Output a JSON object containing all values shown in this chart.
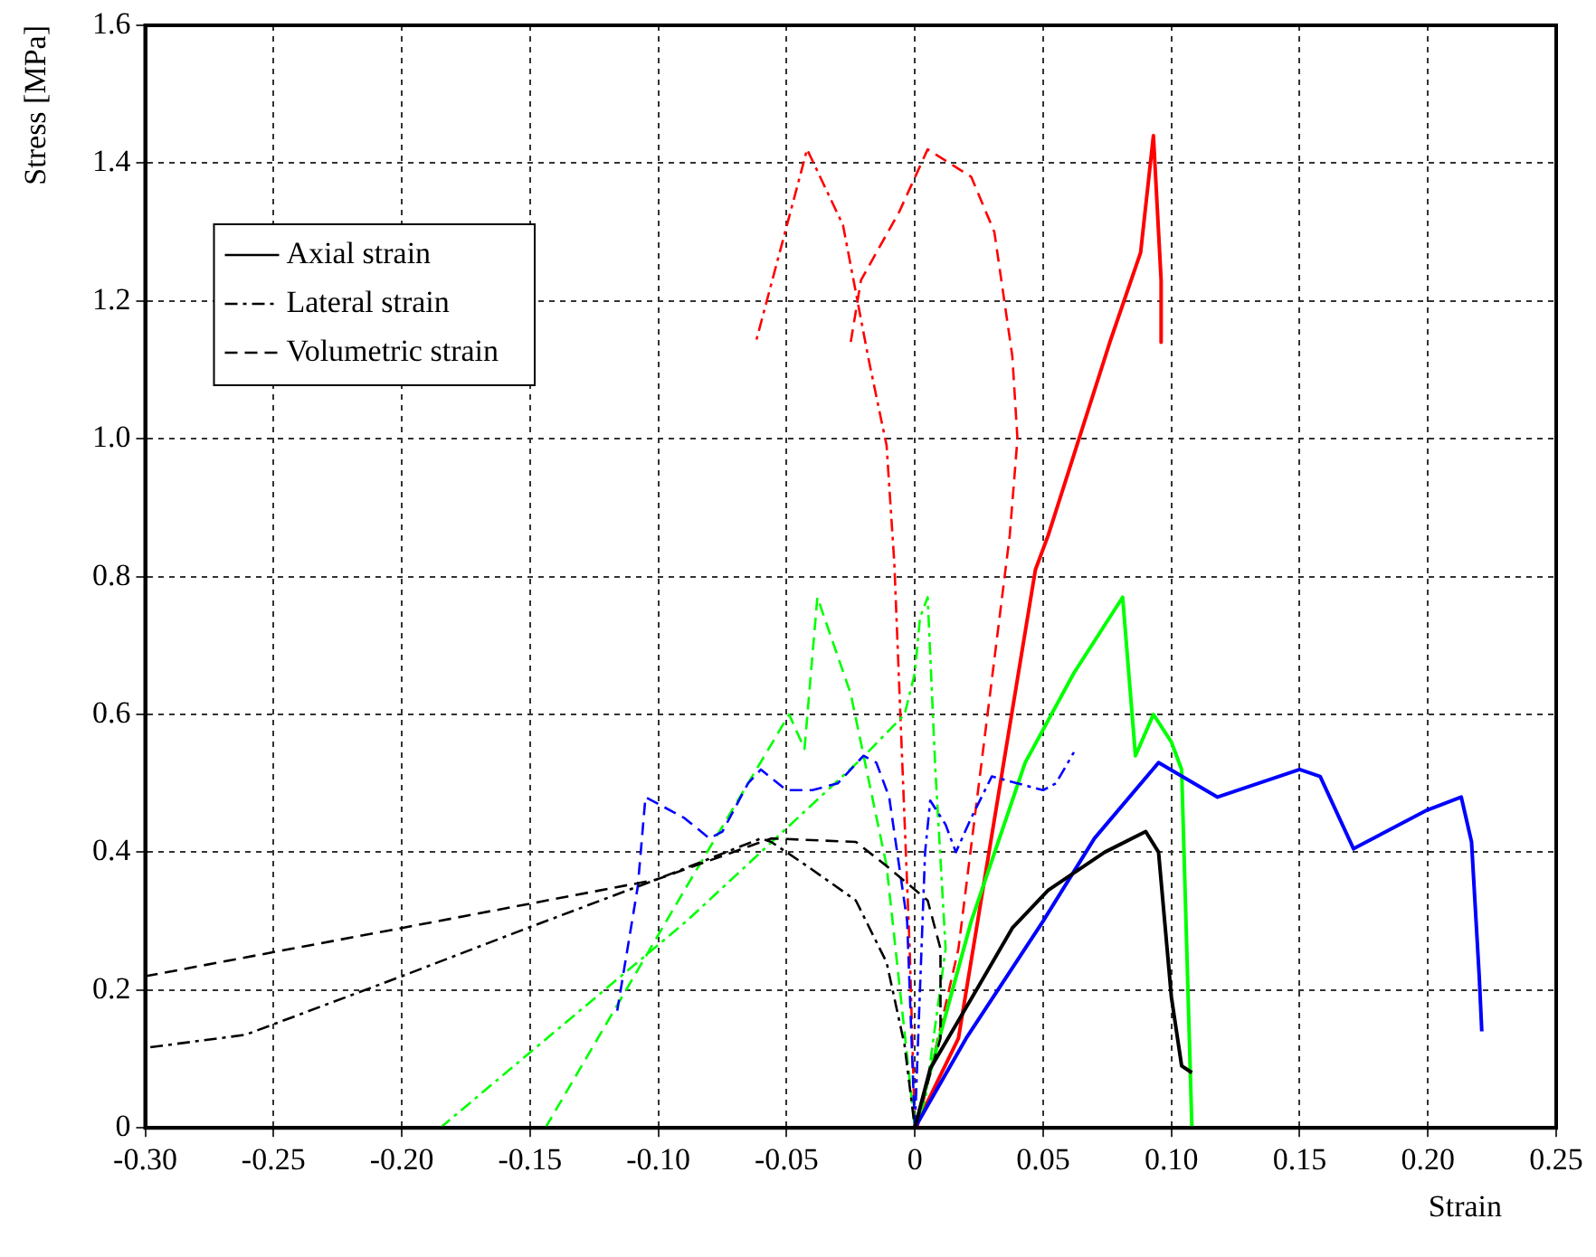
{
  "chart_data": {
    "type": "line",
    "xlabel": "Strain",
    "ylabel": "Stress [MPa]",
    "xlim": [
      -0.3,
      0.25
    ],
    "ylim": [
      0,
      1.6
    ],
    "xticks": [
      {
        "value": -0.3,
        "label": "-0.30"
      },
      {
        "value": -0.25,
        "label": "-0.25"
      },
      {
        "value": -0.2,
        "label": "-0.20"
      },
      {
        "value": -0.15,
        "label": "-0.15"
      },
      {
        "value": -0.1,
        "label": "-0.10"
      },
      {
        "value": -0.05,
        "label": "-0.05"
      },
      0,
      {
        "value": 0.05,
        "label": "0.05"
      },
      {
        "value": 0.1,
        "label": "0.10"
      },
      {
        "value": 0.15,
        "label": "0.15"
      },
      {
        "value": 0.2,
        "label": "0.20"
      },
      {
        "value": 0.25,
        "label": "0.25"
      }
    ],
    "yticks": [
      0,
      0.2,
      0.4,
      0.6,
      0.8,
      {
        "value": 1,
        "label": "1.0"
      },
      1.2,
      1.4,
      1.6
    ],
    "grid": true,
    "legend": "top left",
    "series": [
      {
        "name": "Axial strain",
        "color": "#000000",
        "line_style": "solid",
        "x": [
          0,
          0.006,
          0.024,
          0.038,
          0.052,
          0.074,
          0.09,
          0.095,
          0.1,
          0.104,
          0.108
        ],
        "values": [
          0,
          0.086,
          0.2,
          0.29,
          0.345,
          0.4,
          0.43,
          0.4,
          0.19,
          0.09,
          0.08
        ]
      },
      {
        "name": "Lateral strain",
        "color": "#000000",
        "line_style": "dashdot",
        "x": [
          -0.298,
          -0.261,
          -0.2,
          -0.151,
          -0.101,
          -0.06,
          -0.056,
          -0.042,
          -0.023,
          -0.011,
          -0.004,
          0
        ],
        "values": [
          0.117,
          0.135,
          0.22,
          0.29,
          0.36,
          0.42,
          0.415,
          0.38,
          0.33,
          0.24,
          0.12,
          0
        ]
      },
      {
        "name": "Volumetric strain",
        "color": "#000000",
        "line_style": "dashed",
        "x": [
          -0.3,
          -0.2,
          -0.101,
          -0.056,
          -0.023,
          -0.011,
          0.005,
          0.01,
          0.01,
          0.003,
          0
        ],
        "values": [
          0.22,
          0.29,
          0.36,
          0.42,
          0.415,
          0.38,
          0.33,
          0.26,
          0.13,
          0.04,
          0
        ]
      },
      {
        "color": "#0000ff",
        "line_style": "solid",
        "x": [
          0,
          0.02,
          0.05,
          0.07,
          0.095,
          0.118,
          0.15,
          0.158,
          0.171,
          0.199,
          0.213,
          0.217,
          0.22,
          0.221
        ],
        "values": [
          0,
          0.13,
          0.3,
          0.42,
          0.53,
          0.48,
          0.52,
          0.51,
          0.405,
          0.46,
          0.48,
          0.415,
          0.22,
          0.14
        ]
      },
      {
        "color": "#0000ff",
        "line_style": "dashdot",
        "x": [
          0,
          0.004,
          0.006,
          0.012,
          0.016,
          0.022,
          0.03,
          0.04,
          0.05,
          0.055,
          0.062
        ],
        "values": [
          0,
          0.4,
          0.475,
          0.44,
          0.4,
          0.45,
          0.51,
          0.5,
          0.49,
          0.5,
          0.545
        ]
      },
      {
        "color": "#0000ff",
        "line_style": "dashed",
        "x": [
          0,
          -0.003,
          -0.01,
          -0.015,
          -0.02,
          -0.03,
          -0.04,
          -0.05,
          -0.06,
          -0.065,
          -0.075,
          -0.08,
          -0.09,
          -0.105,
          -0.108,
          -0.116
        ],
        "values": [
          0,
          0.3,
          0.48,
          0.53,
          0.54,
          0.5,
          0.49,
          0.49,
          0.52,
          0.5,
          0.43,
          0.42,
          0.45,
          0.48,
          0.35,
          0.17
        ]
      },
      {
        "color": "#00ff00",
        "line_style": "solid",
        "x": [
          0,
          0.022,
          0.043,
          0.062,
          0.081,
          0.086,
          0.093,
          0.1,
          0.104,
          0.108
        ],
        "values": [
          0,
          0.3,
          0.53,
          0.66,
          0.77,
          0.54,
          0.6,
          0.56,
          0.52,
          0
        ]
      },
      {
        "color": "#00ff00",
        "line_style": "dashdot",
        "x": [
          -0.185,
          -0.089,
          -0.021,
          -0.004,
          0,
          0.002,
          0.005,
          0.008,
          0.012,
          0.004,
          0
        ],
        "values": [
          0,
          0.3,
          0.535,
          0.6,
          0.66,
          0.74,
          0.77,
          0.52,
          0.26,
          0.04,
          0
        ]
      },
      {
        "color": "#00ff00",
        "line_style": "dashed",
        "x": [
          -0.144,
          -0.089,
          -0.049,
          -0.043,
          -0.038,
          -0.025,
          -0.011,
          0
        ],
        "values": [
          0,
          0.35,
          0.6,
          0.55,
          0.77,
          0.63,
          0.38,
          0
        ]
      },
      {
        "color": "#ff0000",
        "line_style": "solid",
        "x": [
          0,
          0.017,
          0.047,
          0.052,
          0.064,
          0.076,
          0.088,
          0.093,
          0.096,
          0.096
        ],
        "values": [
          0,
          0.13,
          0.81,
          0.86,
          1,
          1.14,
          1.27,
          1.44,
          1.23,
          1.14
        ]
      },
      {
        "color": "#ff0000",
        "line_style": "dashdot",
        "x": [
          0,
          -0.002,
          -0.008,
          -0.011,
          -0.018,
          -0.028,
          -0.042,
          -0.062
        ],
        "values": [
          0,
          0.26,
          0.82,
          0.99,
          1.115,
          1.31,
          1.42,
          1.14
        ]
      },
      {
        "color": "#ff0000",
        "line_style": "dashed",
        "x": [
          0.001,
          0.017,
          0.037,
          0.04,
          0.038,
          0.031,
          0.022,
          0.005,
          -0.006,
          -0.021,
          -0.025
        ],
        "values": [
          0,
          0.26,
          0.86,
          1,
          1.12,
          1.3,
          1.38,
          1.42,
          1.33,
          1.23,
          1.14
        ]
      }
    ]
  }
}
